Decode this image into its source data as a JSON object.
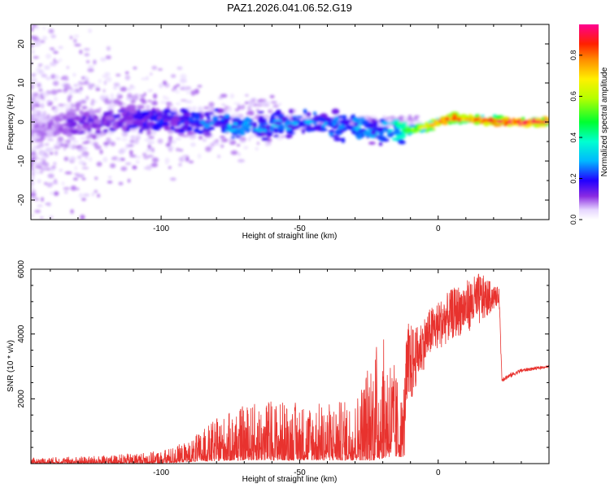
{
  "title": "PAZ1.2026.041.06.52.G19",
  "chart_data": [
    {
      "type": "heatmap",
      "name": "spectrogram",
      "xlabel": "Height of straight line (km)",
      "ylabel": "Frequency (Hz)",
      "xlim": [
        -147,
        40
      ],
      "ylim": [
        -25,
        25
      ],
      "xticks": [
        -100,
        -50,
        0
      ],
      "xtick_labels": [
        "-100",
        "-50",
        "0"
      ],
      "yticks": [
        -20,
        -10,
        0,
        10,
        20
      ],
      "ytick_labels": [
        "-20",
        "-10",
        "0",
        "10",
        "20"
      ],
      "colorbar": {
        "label": "Normalized spectral amplitude",
        "range": [
          0,
          0.95
        ],
        "ticks": [
          0.0,
          0.2,
          0.4,
          0.6,
          0.8
        ],
        "tick_labels": [
          "0.0",
          "0.2",
          "0.4",
          "0.6",
          "0.8"
        ]
      },
      "ridge": [
        {
          "x": -147,
          "y": -1.5,
          "amp": 0.08
        },
        {
          "x": -130,
          "y": -0.5,
          "amp": 0.14
        },
        {
          "x": -110,
          "y": 0.5,
          "amp": 0.18
        },
        {
          "x": -90,
          "y": 0.0,
          "amp": 0.22
        },
        {
          "x": -75,
          "y": -1.0,
          "amp": 0.3
        },
        {
          "x": -60,
          "y": -0.8,
          "amp": 0.3
        },
        {
          "x": -45,
          "y": -0.5,
          "amp": 0.28
        },
        {
          "x": -30,
          "y": -1.5,
          "amp": 0.3
        },
        {
          "x": -20,
          "y": -2.5,
          "amp": 0.28
        },
        {
          "x": -10,
          "y": -2.0,
          "amp": 0.55
        },
        {
          "x": -3,
          "y": -1.0,
          "amp": 0.7
        },
        {
          "x": 3,
          "y": 0.8,
          "amp": 0.85
        },
        {
          "x": 15,
          "y": 0.6,
          "amp": 0.85
        },
        {
          "x": 25,
          "y": 0.0,
          "amp": 0.9
        },
        {
          "x": 40,
          "y": 0.0,
          "amp": 0.9
        }
      ]
    },
    {
      "type": "line",
      "name": "snr",
      "xlabel": "Height of straight line (km)",
      "ylabel": "SNR (10 * v/v)",
      "xlim": [
        -147,
        40
      ],
      "ylim": [
        0,
        6000
      ],
      "xticks": [
        -100,
        -50,
        0
      ],
      "xtick_labels": [
        "-100",
        "-50",
        "0"
      ],
      "yticks": [
        2000,
        4000,
        6000
      ],
      "ytick_labels": [
        "2000",
        "4000",
        "6000"
      ],
      "color": "#e8322e",
      "envelope": [
        {
          "x": -147,
          "lo": 0,
          "hi": 180
        },
        {
          "x": -120,
          "lo": 0,
          "hi": 250
        },
        {
          "x": -100,
          "lo": 0,
          "hi": 400
        },
        {
          "x": -90,
          "lo": 50,
          "hi": 700
        },
        {
          "x": -80,
          "lo": 80,
          "hi": 1400
        },
        {
          "x": -70,
          "lo": 100,
          "hi": 1800
        },
        {
          "x": -60,
          "lo": 100,
          "hi": 2000
        },
        {
          "x": -50,
          "lo": 100,
          "hi": 1900
        },
        {
          "x": -40,
          "lo": 100,
          "hi": 1900
        },
        {
          "x": -30,
          "lo": 100,
          "hi": 2000
        },
        {
          "x": -23,
          "lo": 100,
          "hi": 3800
        },
        {
          "x": -18,
          "lo": 200,
          "hi": 3900
        },
        {
          "x": -13,
          "lo": 200,
          "hi": 2100
        },
        {
          "x": -11,
          "lo": 300,
          "hi": 4400
        },
        {
          "x": -8,
          "lo": 1800,
          "hi": 4200
        },
        {
          "x": -3,
          "lo": 2800,
          "hi": 4800
        },
        {
          "x": 5,
          "lo": 3300,
          "hi": 5400
        },
        {
          "x": 15,
          "lo": 3700,
          "hi": 5900
        },
        {
          "x": 22,
          "lo": 4800,
          "hi": 5400
        },
        {
          "x": 23,
          "lo": 2500,
          "hi": 2700
        },
        {
          "x": 30,
          "lo": 2800,
          "hi": 2950
        },
        {
          "x": 40,
          "lo": 2950,
          "hi": 3050
        }
      ]
    }
  ]
}
